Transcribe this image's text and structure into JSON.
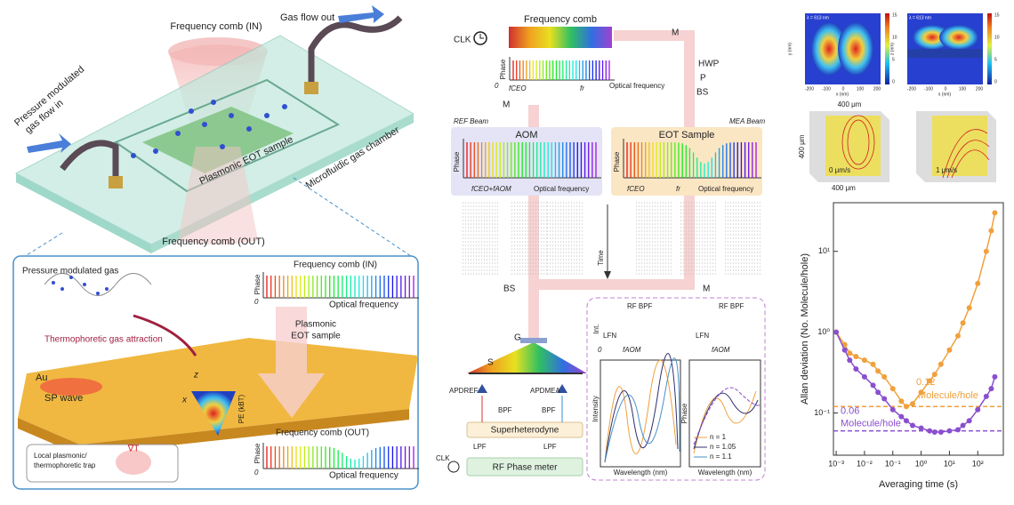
{
  "schematic": {
    "comb_in": "Frequency comb (IN)",
    "gas_out": "Gas flow out",
    "gas_in": [
      "Pressure modulated",
      "gas flow in"
    ],
    "sample": "Plasmonic EOT sample",
    "chamber": "Microfluidic gas chamber",
    "comb_out": "Frequency comb (OUT)"
  },
  "inset": {
    "gas": "Pressure modulated gas",
    "comb_in": "Frequency comb (IN)",
    "phase": "Phase",
    "zero": "0",
    "optical": "Optical frequency",
    "attraction": "Thermophoretic gas attraction",
    "sample": [
      "Plasmonic",
      "EOT sample"
    ],
    "au": "Au",
    "sp": "SP wave",
    "z": "z",
    "x": "x",
    "pe": "PE (kBT)",
    "trap": [
      "Local plasmonic/",
      "thermophoretic trap"
    ],
    "grad": "∇T",
    "comb_out": "Frequency comb (OUT)"
  },
  "setup": {
    "clk": "CLK",
    "comb": "Frequency comb",
    "m": "M",
    "hwp": "HWP",
    "p": "P",
    "bs": "BS",
    "phase": "Phase",
    "zero": "0",
    "fceo": "fCEO",
    "fr": "fr",
    "optical": "Optical frequency",
    "ref": "REF Beam",
    "mea": "MEA Beam",
    "aom": "AOM",
    "eot": "EOT Sample",
    "fceo_aom": "fCEO+fAOM",
    "time": "Time",
    "g": "G",
    "s": "S",
    "apd_ref": "APDREF",
    "apd_mea": "APDMEA",
    "bpf": "BPF",
    "superhet": "Superheterodyne",
    "lpf": "LPF",
    "phase_meter": "RF Phase meter",
    "rf_bpf": "RF BPF",
    "int": "Int.",
    "lfn": "LFN",
    "faom": "fAOM",
    "intensity": "Intensity",
    "wavelength": "Wavelength (nm)",
    "legend": [
      "n = 1",
      "n = 1.05",
      "n = 1.1"
    ]
  },
  "maps": {
    "lambda": "λ = 613 nm",
    "xticks": [
      "-200",
      "-100",
      "0",
      "100",
      "200"
    ],
    "cb": [
      "15",
      "10",
      "5",
      "0"
    ],
    "xlab": "x (nm)",
    "ylab": "y (nm)",
    "zlab": "z (nm)"
  },
  "flow": {
    "dim": "400 μm",
    "v0": "0 μm/s",
    "v1": "1 μm/s"
  },
  "chart_data": {
    "type": "line",
    "xlabel": "Averaging time (s)",
    "ylabel": "Allan deviation (No. Molecule/hole)",
    "xlog": true,
    "ylog": true,
    "x": [
      0.001,
      0.002,
      0.003,
      0.005,
      0.01,
      0.02,
      0.03,
      0.05,
      0.1,
      0.2,
      0.3,
      0.5,
      1,
      2,
      3,
      5,
      10,
      20,
      30,
      50,
      100,
      200,
      300,
      400
    ],
    "series": [
      {
        "name": "0.12 Molecule/hole",
        "color": "#f0a03c",
        "values": [
          1.0,
          0.7,
          0.55,
          0.5,
          0.45,
          0.4,
          0.33,
          0.28,
          0.2,
          0.14,
          0.12,
          0.13,
          0.18,
          0.25,
          0.3,
          0.4,
          0.6,
          0.9,
          1.3,
          2,
          4,
          10,
          18,
          30
        ]
      },
      {
        "name": "0.06 Molecule/hole",
        "color": "#8a4fcf",
        "values": [
          1.0,
          0.6,
          0.45,
          0.35,
          0.28,
          0.22,
          0.18,
          0.15,
          0.11,
          0.09,
          0.08,
          0.07,
          0.065,
          0.06,
          0.058,
          0.058,
          0.06,
          0.062,
          0.07,
          0.08,
          0.11,
          0.16,
          0.2,
          0.28
        ]
      }
    ],
    "hlines": [
      {
        "value": 0.12,
        "color": "#f0a03c",
        "label": "0.12",
        "note": "Molecule/hole"
      },
      {
        "value": 0.06,
        "color": "#8a4fcf",
        "label": "0.06",
        "note": "Molecule/hole"
      }
    ],
    "xlim": [
      0.0008,
      800
    ],
    "ylim": [
      0.03,
      40
    ],
    "xticks": [
      {
        "value": 0.001,
        "label": "10⁻³"
      },
      {
        "value": 0.01,
        "label": "10⁻²"
      },
      {
        "value": 0.1,
        "label": "10⁻¹"
      },
      {
        "value": 1,
        "label": "10⁰"
      },
      {
        "value": 10,
        "label": "10¹"
      },
      {
        "value": 100,
        "label": "10²"
      }
    ],
    "yticks": [
      {
        "value": 0.1,
        "label": "10⁻¹"
      },
      {
        "value": 1,
        "label": "10⁰"
      },
      {
        "value": 10,
        "label": "10¹"
      }
    ]
  }
}
